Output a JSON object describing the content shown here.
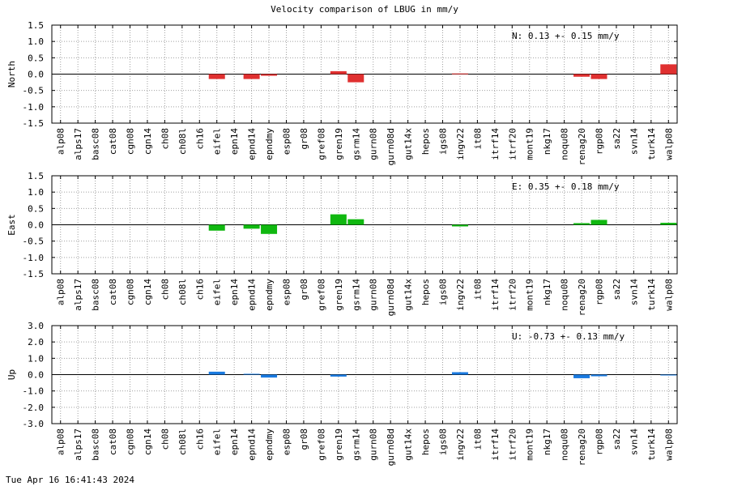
{
  "title": "Velocity comparison of LBUG in mm/y",
  "timestamp": "Tue Apr 16 16:41:43 2024",
  "stations": [
    "alp08",
    "alps17",
    "basc08",
    "cat08",
    "cgn08",
    "cgn14",
    "ch08",
    "ch08l",
    "ch16",
    "eifel",
    "epn14",
    "epnd14",
    "epndmy",
    "esp08",
    "gr08",
    "gref08",
    "gren19",
    "gsrm14",
    "gurn08",
    "gurn08d",
    "gut14x",
    "hepos",
    "igs08",
    "ingv22",
    "it08",
    "itrf14",
    "itrf20",
    "mont19",
    "nkg17",
    "noqu08",
    "renag20",
    "rgp08",
    "sa22",
    "svn14",
    "turk14",
    "walp08"
  ],
  "chart_data": [
    {
      "type": "bar",
      "id": "north",
      "ylabel": "North",
      "ylim": [
        -1.5,
        1.5
      ],
      "yticks": [
        -1.5,
        -1.0,
        -0.5,
        0.0,
        0.5,
        1.0,
        1.5
      ],
      "ytick_labels": [
        "-1.5",
        "-1.0",
        "-0.5",
        "0.0",
        "0.5",
        "1.0",
        "1.5"
      ],
      "color": "#e03030",
      "annotation": "N:   0.13 +-  0.15 mm/y",
      "values": [
        0,
        0,
        0,
        0,
        0,
        0,
        0,
        0,
        0,
        -0.15,
        0,
        -0.15,
        -0.05,
        0,
        0,
        0,
        0.09,
        -0.25,
        0,
        0,
        0,
        0,
        0,
        0.02,
        0,
        0,
        0,
        0,
        0,
        0,
        -0.08,
        -0.15,
        0,
        0,
        0,
        0.3
      ]
    },
    {
      "type": "bar",
      "id": "east",
      "ylabel": "East",
      "ylim": [
        -1.5,
        1.5
      ],
      "yticks": [
        -1.5,
        -1.0,
        -0.5,
        0.0,
        0.5,
        1.0,
        1.5
      ],
      "ytick_labels": [
        "-1.5",
        "-1.0",
        "-0.5",
        "0.0",
        "0.5",
        "1.0",
        "1.5"
      ],
      "color": "#10b810",
      "annotation": "E:   0.35 +-  0.18 mm/y",
      "values": [
        0,
        0,
        0,
        0,
        0,
        0,
        0,
        0,
        0,
        -0.18,
        0,
        -0.12,
        -0.28,
        0,
        0,
        0,
        0.32,
        0.17,
        0,
        0,
        0,
        0,
        0,
        -0.05,
        0,
        0,
        0,
        0,
        0,
        0,
        0.05,
        0.15,
        0,
        0,
        0,
        0.06
      ]
    },
    {
      "type": "bar",
      "id": "up",
      "ylabel": "Up",
      "ylim": [
        -3.0,
        3.0
      ],
      "yticks": [
        -3.0,
        -2.0,
        -1.0,
        0.0,
        1.0,
        2.0,
        3.0
      ],
      "ytick_labels": [
        "-3.0",
        "-2.0",
        "-1.0",
        "0.0",
        "1.0",
        "2.0",
        "3.0"
      ],
      "color": "#1a7ae0",
      "annotation": "U:  -0.73 +-  0.13 mm/y",
      "values": [
        0,
        0,
        0,
        0,
        0,
        0,
        0,
        0,
        0,
        0.18,
        0,
        0.05,
        -0.18,
        0,
        0,
        0,
        -0.12,
        0,
        0,
        0,
        0,
        0,
        0,
        0.15,
        0,
        0,
        0,
        0,
        0,
        0,
        -0.22,
        -0.1,
        0,
        0,
        0,
        -0.05
      ]
    }
  ]
}
